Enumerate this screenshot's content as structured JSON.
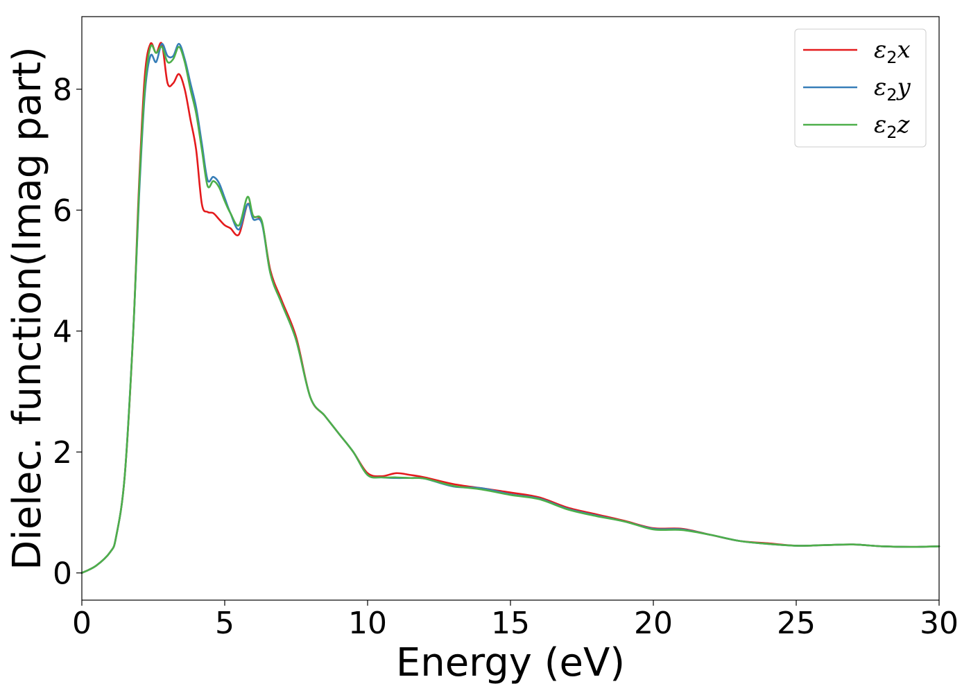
{
  "chart_data": {
    "type": "line",
    "title": "",
    "xlabel": "Energy (eV)",
    "ylabel": "Dielec. function(Imag part)",
    "xlim": [
      0,
      30
    ],
    "ylim": [
      -0.45,
      9.2
    ],
    "xticks": [
      0,
      5,
      10,
      15,
      20,
      25,
      30
    ],
    "yticks": [
      0,
      2,
      4,
      6,
      8
    ],
    "grid": false,
    "legend_position": "top-right",
    "series": [
      {
        "name": "ε2x",
        "legend": {
          "symbol": "ε",
          "sub": "2",
          "var": "x"
        },
        "color": "#e41a1c",
        "x": [
          0,
          0.5,
          1.0,
          1.2,
          1.5,
          1.8,
          2.0,
          2.2,
          2.4,
          2.6,
          2.8,
          3.0,
          3.2,
          3.4,
          3.6,
          3.8,
          4.0,
          4.2,
          4.4,
          4.6,
          4.8,
          5.0,
          5.2,
          5.5,
          5.8,
          6.0,
          6.3,
          6.6,
          7.0,
          7.5,
          8.0,
          8.5,
          9.0,
          9.5,
          10.0,
          10.5,
          11.0,
          11.5,
          12.0,
          13.0,
          14.0,
          15.0,
          16.0,
          17.0,
          18.0,
          19.0,
          20.0,
          21.0,
          22.0,
          23.0,
          24.0,
          25.0,
          26.0,
          27.0,
          28.0,
          29.0,
          30.0
        ],
        "values": [
          0.0,
          0.12,
          0.35,
          0.6,
          1.6,
          4.0,
          6.4,
          8.2,
          8.75,
          8.6,
          8.75,
          8.1,
          8.1,
          8.25,
          8.0,
          7.5,
          7.0,
          6.1,
          5.97,
          5.95,
          5.85,
          5.75,
          5.7,
          5.6,
          6.1,
          5.9,
          5.8,
          5.0,
          4.5,
          3.9,
          2.9,
          2.6,
          2.3,
          2.0,
          1.65,
          1.6,
          1.65,
          1.62,
          1.58,
          1.47,
          1.4,
          1.33,
          1.25,
          1.08,
          0.97,
          0.86,
          0.74,
          0.73,
          0.63,
          0.53,
          0.49,
          0.45,
          0.46,
          0.47,
          0.44,
          0.43,
          0.44
        ]
      },
      {
        "name": "ε2y",
        "legend": {
          "symbol": "ε",
          "sub": "2",
          "var": "y"
        },
        "color": "#377eb8",
        "x": [
          0,
          0.5,
          1.0,
          1.2,
          1.5,
          1.8,
          2.0,
          2.2,
          2.4,
          2.6,
          2.8,
          3.0,
          3.2,
          3.4,
          3.6,
          3.8,
          4.0,
          4.2,
          4.4,
          4.6,
          4.8,
          5.0,
          5.2,
          5.5,
          5.8,
          6.0,
          6.3,
          6.6,
          7.0,
          7.5,
          8.0,
          8.5,
          9.0,
          9.5,
          10.0,
          10.5,
          11.0,
          11.5,
          12.0,
          13.0,
          14.0,
          15.0,
          16.0,
          17.0,
          18.0,
          19.0,
          20.0,
          21.0,
          22.0,
          23.0,
          24.0,
          25.0,
          26.0,
          27.0,
          28.0,
          29.0,
          30.0
        ],
        "values": [
          0.0,
          0.12,
          0.35,
          0.6,
          1.6,
          4.0,
          6.2,
          7.9,
          8.55,
          8.45,
          8.75,
          8.55,
          8.55,
          8.75,
          8.5,
          8.1,
          7.7,
          7.1,
          6.5,
          6.55,
          6.45,
          6.2,
          5.95,
          5.68,
          6.1,
          5.85,
          5.78,
          4.95,
          4.45,
          3.85,
          2.9,
          2.6,
          2.3,
          2.0,
          1.62,
          1.58,
          1.57,
          1.57,
          1.56,
          1.43,
          1.4,
          1.3,
          1.23,
          1.06,
          0.95,
          0.85,
          0.73,
          0.72,
          0.63,
          0.53,
          0.48,
          0.45,
          0.46,
          0.47,
          0.44,
          0.43,
          0.44
        ]
      },
      {
        "name": "ε2z",
        "legend": {
          "symbol": "ε",
          "sub": "2",
          "var": "z"
        },
        "color": "#4daf4a",
        "x": [
          0,
          0.5,
          1.0,
          1.2,
          1.5,
          1.8,
          2.0,
          2.2,
          2.4,
          2.6,
          2.8,
          3.0,
          3.2,
          3.4,
          3.6,
          3.8,
          4.0,
          4.2,
          4.4,
          4.6,
          4.8,
          5.0,
          5.2,
          5.5,
          5.8,
          6.0,
          6.3,
          6.6,
          7.0,
          7.5,
          8.0,
          8.5,
          9.0,
          9.5,
          10.0,
          10.5,
          11.0,
          11.5,
          12.0,
          13.0,
          14.0,
          15.0,
          16.0,
          17.0,
          18.0,
          19.0,
          20.0,
          21.0,
          22.0,
          23.0,
          24.0,
          25.0,
          26.0,
          27.0,
          28.0,
          29.0,
          30.0
        ],
        "values": [
          0.0,
          0.12,
          0.35,
          0.6,
          1.6,
          4.0,
          6.3,
          8.0,
          8.7,
          8.6,
          8.7,
          8.45,
          8.5,
          8.7,
          8.45,
          8.0,
          7.6,
          7.0,
          6.4,
          6.48,
          6.38,
          6.15,
          5.95,
          5.75,
          6.22,
          5.9,
          5.82,
          4.95,
          4.45,
          3.85,
          2.9,
          2.6,
          2.3,
          2.0,
          1.62,
          1.58,
          1.58,
          1.57,
          1.56,
          1.44,
          1.38,
          1.29,
          1.22,
          1.05,
          0.94,
          0.85,
          0.72,
          0.71,
          0.63,
          0.53,
          0.48,
          0.45,
          0.46,
          0.47,
          0.44,
          0.43,
          0.44
        ]
      }
    ]
  }
}
